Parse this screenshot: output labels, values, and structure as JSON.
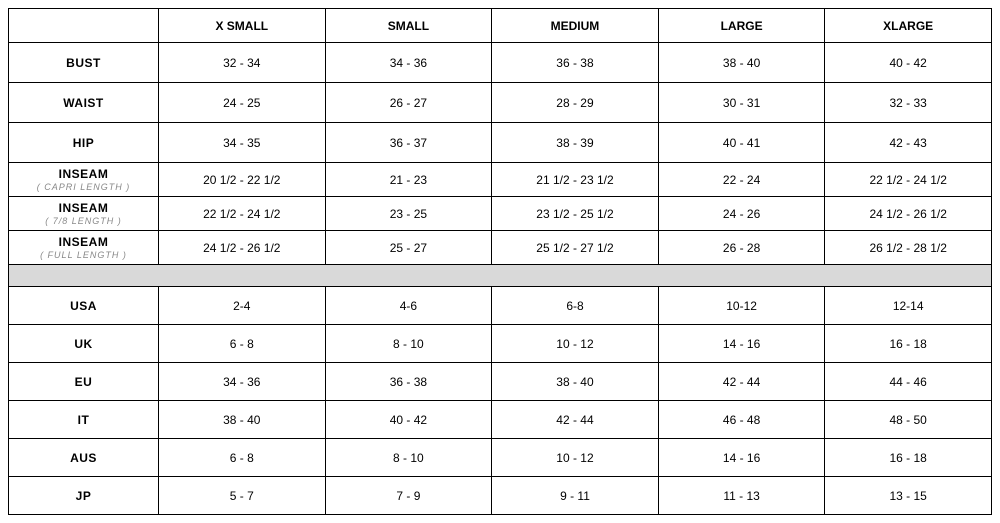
{
  "table": {
    "columns": [
      "X SMALL",
      "SMALL",
      "MEDIUM",
      "LARGE",
      "XLARGE"
    ],
    "body_rows": [
      {
        "label": "BUST",
        "values": [
          "32 - 34",
          "34 - 36",
          "36 - 38",
          "38 - 40",
          "40 - 42"
        ]
      },
      {
        "label": "WAIST",
        "values": [
          "24 - 25",
          "26 - 27",
          "28 - 29",
          "30 - 31",
          "32 - 33"
        ]
      },
      {
        "label": "HIP",
        "values": [
          "34 - 35",
          "36 - 37",
          "38 - 39",
          "40 - 41",
          "42 - 43"
        ]
      }
    ],
    "inseam_rows": [
      {
        "label": "INSEAM",
        "sub": "( CAPRI  LENGTH )",
        "values": [
          "20 1/2 - 22 1/2",
          "21 - 23",
          "21 1/2 - 23 1/2",
          "22 - 24",
          "22 1/2 - 24 1/2"
        ]
      },
      {
        "label": "INSEAM",
        "sub": "( 7/8 LENGTH )",
        "values": [
          "22 1/2 - 24 1/2",
          "23 - 25",
          "23 1/2 - 25 1/2",
          "24 - 26",
          "24 1/2 - 26 1/2"
        ]
      },
      {
        "label": "INSEAM",
        "sub": "( FULL  LENGTH )",
        "values": [
          "24 1/2 - 26 1/2",
          "25 - 27",
          "25 1/2 - 27 1/2",
          "26 - 28",
          "26 1/2 - 28 1/2"
        ]
      }
    ],
    "region_rows": [
      {
        "label": "USA",
        "values": [
          "2-4",
          "4-6",
          "6-8",
          "10-12",
          "12-14"
        ]
      },
      {
        "label": "UK",
        "values": [
          "6 - 8",
          "8 - 10",
          "10 - 12",
          "14 - 16",
          "16 - 18"
        ]
      },
      {
        "label": "EU",
        "values": [
          "34 - 36",
          "36 - 38",
          "38 - 40",
          "42 - 44",
          "44 - 46"
        ]
      },
      {
        "label": "IT",
        "values": [
          "38 - 40",
          "40 - 42",
          "42 - 44",
          "46 - 48",
          "48 - 50"
        ]
      },
      {
        "label": "AUS",
        "values": [
          "6 - 8",
          "8 - 10",
          "10 - 12",
          "14 - 16",
          "16 - 18"
        ]
      },
      {
        "label": "JP",
        "values": [
          "5 - 7",
          "7 - 9",
          "9 - 11",
          "11 - 13",
          "13 - 15"
        ]
      }
    ],
    "colors": {
      "border": "#000000",
      "spacer_bg": "#d9d9d9",
      "text": "#000000",
      "sub_text": "#888888",
      "background": "#ffffff"
    },
    "header_fontsize": 12,
    "cell_fontsize": 12,
    "sub_fontsize": 9
  }
}
